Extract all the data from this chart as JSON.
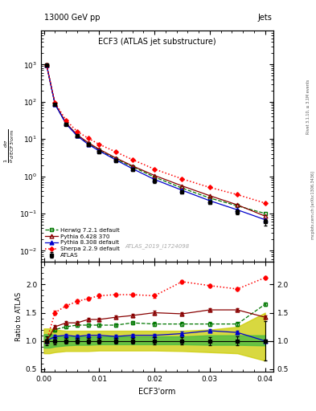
{
  "title_top": "13000 GeV pp",
  "title_right": "Jets",
  "plot_title": "ECF3 (ATLAS jet substructure)",
  "xlabel": "ECF3’orm",
  "ylabel_ratio": "Ratio to ATLAS",
  "watermark": "ATLAS_2019_I1724098",
  "right_label": "Rivet 3.1.10, ≥ 3.1M events",
  "mcplots_label": "mcplots.cern.ch [arXiv:1306.3436]",
  "x_atlas": [
    0.0005,
    0.002,
    0.004,
    0.006,
    0.008,
    0.01,
    0.013,
    0.016,
    0.02,
    0.025,
    0.03,
    0.035,
    0.04
  ],
  "y_atlas": [
    950,
    85,
    25,
    12,
    7.0,
    4.5,
    2.6,
    1.5,
    0.75,
    0.38,
    0.2,
    0.11,
    0.06
  ],
  "y_atlas_err": [
    40,
    4,
    1.5,
    0.8,
    0.5,
    0.3,
    0.2,
    0.15,
    0.08,
    0.04,
    0.02,
    0.015,
    0.012
  ],
  "x_mc": [
    0.0005,
    0.002,
    0.004,
    0.006,
    0.008,
    0.01,
    0.013,
    0.016,
    0.02,
    0.025,
    0.03,
    0.035,
    0.04
  ],
  "y_herwig": [
    950,
    88,
    26,
    12.5,
    7.5,
    5.0,
    2.9,
    1.8,
    0.95,
    0.48,
    0.26,
    0.16,
    0.1
  ],
  "y_pythia6": [
    952,
    90,
    27,
    13,
    8.0,
    5.3,
    3.1,
    1.9,
    1.05,
    0.55,
    0.3,
    0.17,
    0.085
  ],
  "y_pythia8": [
    951,
    87,
    25.5,
    12.2,
    7.2,
    4.8,
    2.75,
    1.6,
    0.82,
    0.42,
    0.22,
    0.125,
    0.068
  ],
  "y_sherpa": [
    955,
    95,
    32,
    16,
    10.5,
    7.2,
    4.5,
    2.8,
    1.55,
    0.85,
    0.5,
    0.32,
    0.19
  ],
  "ratio_herwig": [
    1.0,
    1.2,
    1.25,
    1.28,
    1.28,
    1.28,
    1.28,
    1.32,
    1.3,
    1.3,
    1.3,
    1.3,
    1.65
  ],
  "ratio_pythia6": [
    1.0,
    1.25,
    1.32,
    1.32,
    1.38,
    1.38,
    1.42,
    1.45,
    1.5,
    1.48,
    1.55,
    1.55,
    1.42
  ],
  "ratio_pythia8": [
    1.0,
    1.08,
    1.1,
    1.08,
    1.1,
    1.1,
    1.08,
    1.1,
    1.1,
    1.13,
    1.18,
    1.15,
    1.0
  ],
  "ratio_sherpa": [
    1.0,
    1.5,
    1.62,
    1.7,
    1.75,
    1.8,
    1.82,
    1.82,
    1.8,
    2.05,
    1.98,
    1.92,
    2.12
  ],
  "band_x": [
    0.0,
    0.001,
    0.002,
    0.004,
    0.006,
    0.008,
    0.01,
    0.013,
    0.016,
    0.02,
    0.025,
    0.03,
    0.035,
    0.04
  ],
  "band_green_lo": [
    0.88,
    0.88,
    0.9,
    0.92,
    0.93,
    0.93,
    0.94,
    0.94,
    0.94,
    0.94,
    0.94,
    0.93,
    0.93,
    0.92
  ],
  "band_green_hi": [
    1.12,
    1.12,
    1.1,
    1.08,
    1.08,
    1.08,
    1.08,
    1.08,
    1.08,
    1.08,
    1.08,
    1.1,
    1.1,
    1.1
  ],
  "band_yellow_lo": [
    0.78,
    0.78,
    0.8,
    0.82,
    0.82,
    0.82,
    0.83,
    0.83,
    0.83,
    0.83,
    0.82,
    0.8,
    0.78,
    0.65
  ],
  "band_yellow_hi": [
    1.22,
    1.22,
    1.2,
    1.18,
    1.18,
    1.18,
    1.18,
    1.18,
    1.18,
    1.18,
    1.18,
    1.2,
    1.25,
    1.5
  ],
  "color_atlas": "#000000",
  "color_herwig": "#007700",
  "color_pythia6": "#880000",
  "color_pythia8": "#0000cc",
  "color_sherpa": "#ff0000",
  "color_stat_band": "#44bb44",
  "color_sys_band": "#cccc00",
  "ylim_main": [
    0.005,
    8000
  ],
  "ylim_ratio": [
    0.45,
    2.4
  ],
  "xlim": [
    -0.0005,
    0.0415
  ]
}
